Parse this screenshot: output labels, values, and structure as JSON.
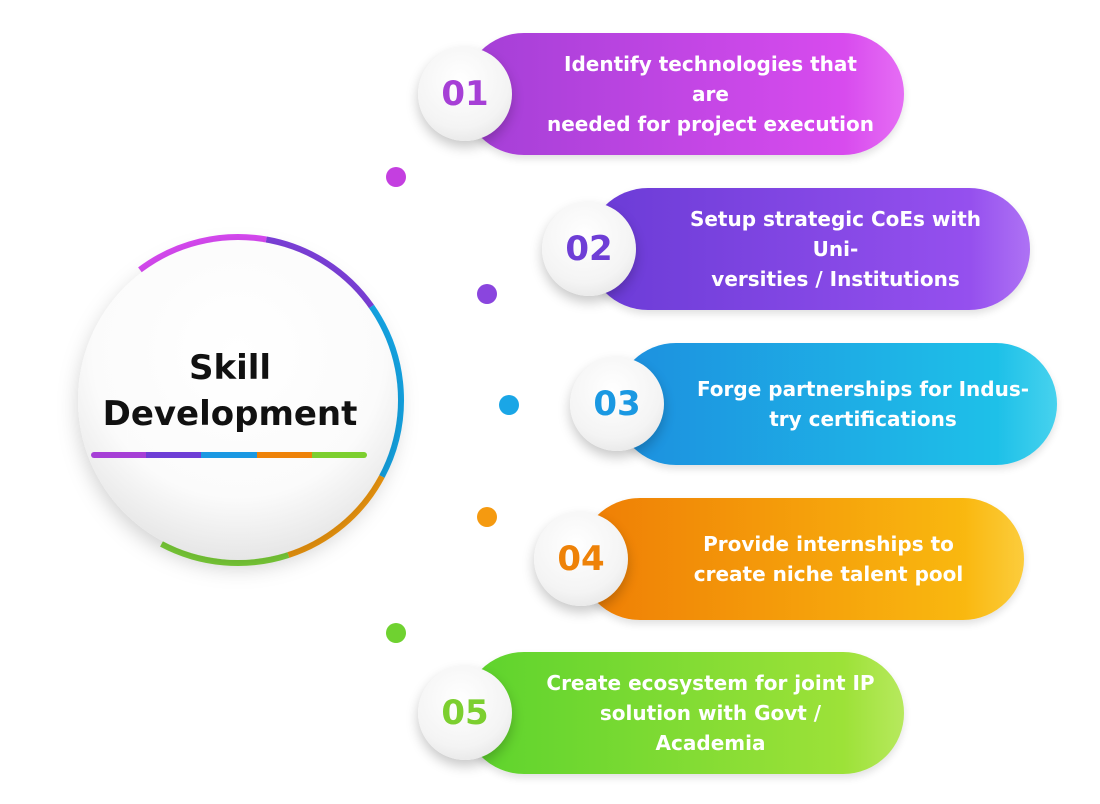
{
  "hub": {
    "title_line1": "Skill",
    "title_line2": "Development"
  },
  "colors": {
    "purple_pink": "#d548f0",
    "violet": "#7b3fd8",
    "blue": "#14a6e6",
    "orange": "#f39a0f",
    "green": "#7fd63a"
  },
  "steps": [
    {
      "number": "01",
      "text": "Identify technologies that are needed for project execution",
      "line1": "Identify technologies that are",
      "line2": "needed for project execution",
      "color_from": "#a33fd6",
      "color_to": "#e04df2",
      "number_color": "#a63fd6"
    },
    {
      "number": "02",
      "text": "Setup strategic CoEs with Universities / Institutions",
      "line1": "Setup strategic CoEs with Uni-",
      "line2": "versities / Institutions",
      "color_from": "#6a3bd6",
      "color_to": "#9c53f2",
      "number_color": "#6e3ed6"
    },
    {
      "number": "03",
      "text": "Forge partnerships for Industry certifications",
      "line1": "Forge partnerships for Indus-",
      "line2": "try certifications",
      "color_from": "#1d8fdf",
      "color_to": "#1ec8ea",
      "number_color": "#1a98e2"
    },
    {
      "number": "04",
      "text": "Provide internships to create niche talent pool",
      "line1": "Provide internships to",
      "line2": "create niche talent pool",
      "color_from": "#ef7d05",
      "color_to": "#fbc111",
      "number_color": "#ee8208"
    },
    {
      "number": "05",
      "text": "Create ecosystem for joint IP solution with Govt / Academia",
      "line1": "Create ecosystem for joint IP",
      "line2": "solution with Govt / Academia",
      "color_from": "#5cd32d",
      "color_to": "#a7e43a",
      "number_color": "#7ccf2f"
    }
  ],
  "dots": [
    {
      "color": "#c43fe0"
    },
    {
      "color": "#8a45de"
    },
    {
      "color": "#1aa6e6"
    },
    {
      "color": "#f59a10"
    },
    {
      "color": "#6fd230"
    }
  ]
}
